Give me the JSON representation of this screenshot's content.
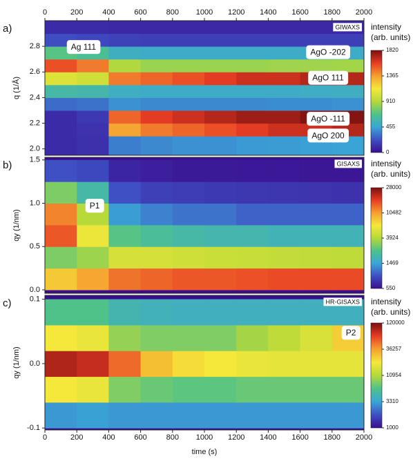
{
  "chart_data": [
    {
      "type": "contour",
      "panel_label": "a)",
      "tag": "GIWAXS",
      "ylabel": "q (1/Å)",
      "xlim": [
        0,
        2000
      ],
      "xticks": [
        0,
        200,
        400,
        600,
        800,
        1000,
        1200,
        1400,
        1600,
        1800,
        2000
      ],
      "xticks_side": "top",
      "ylim": [
        1.95,
        3.0
      ],
      "yticks": [
        {
          "value": 2.0,
          "label": "2.0"
        },
        2.2,
        2.4,
        2.6,
        2.8
      ],
      "x_bins": [
        0,
        200,
        400,
        600,
        800,
        1000,
        1200,
        1400,
        1600,
        1800,
        2000
      ],
      "y_bins": [
        1.95,
        2.1,
        2.2,
        2.3,
        2.4,
        2.5,
        2.6,
        2.7,
        2.8,
        2.9,
        3.0
      ],
      "z": [
        [
          100,
          120,
          350,
          380,
          400,
          400,
          420,
          430,
          440,
          450
        ],
        [
          100,
          130,
          1350,
          1450,
          1500,
          1550,
          1600,
          1650,
          1650,
          1700
        ],
        [
          100,
          150,
          1500,
          1600,
          1650,
          1700,
          1750,
          1750,
          1800,
          1800
        ],
        [
          300,
          320,
          400,
          380,
          380,
          380,
          380,
          390,
          390,
          400
        ],
        [
          600,
          580,
          520,
          500,
          500,
          500,
          500,
          500,
          510,
          520
        ],
        [
          1050,
          1000,
          1450,
          1500,
          1550,
          1600,
          1650,
          1650,
          1700,
          1700
        ],
        [
          1550,
          1450,
          900,
          850,
          850,
          850,
          850,
          860,
          860,
          870
        ],
        [
          700,
          650,
          520,
          500,
          500,
          500,
          500,
          500,
          500,
          500
        ],
        [
          220,
          200,
          180,
          170,
          170,
          170,
          170,
          170,
          170,
          170
        ],
        [
          100,
          100,
          90,
          90,
          90,
          90,
          90,
          90,
          90,
          90
        ]
      ],
      "colorbar": {
        "title": [
          "intensity",
          "(arb. units)"
        ],
        "lim": [
          0,
          1820
        ],
        "ticks": [
          0,
          455,
          910,
          1365,
          1820
        ],
        "log": false
      },
      "annotations": [
        {
          "text": "Ag 111",
          "x": 242,
          "y": 2.79
        },
        {
          "text": "AgO -202",
          "x": 1775,
          "y": 2.75
        },
        {
          "text": "AgO 111",
          "x": 1775,
          "y": 2.55
        },
        {
          "text": "AgO -111",
          "x": 1775,
          "y": 2.23
        },
        {
          "text": "AgO 200",
          "x": 1775,
          "y": 2.1
        }
      ]
    },
    {
      "type": "contour",
      "panel_label": "b)",
      "tag": "GISAXS",
      "ylabel": "qy (1/nm)",
      "xlim": [
        0,
        2000
      ],
      "ylim": [
        -0.04,
        1.53
      ],
      "yticks": [
        {
          "value": 0,
          "label": "0.0"
        },
        0.5,
        {
          "value": 1,
          "label": "1.0"
        },
        1.5
      ],
      "x_bins": [
        0,
        200,
        400,
        600,
        800,
        1000,
        1200,
        1400,
        1600,
        1800,
        2000
      ],
      "y_bins": [
        0,
        0.25,
        0.5,
        0.75,
        1.0,
        1.25,
        1.5
      ],
      "z": [
        [
          8000,
          10000,
          13000,
          14000,
          15000,
          15000,
          15500,
          16000,
          16000,
          16000
        ],
        [
          3000,
          3500,
          5000,
          5000,
          4800,
          4600,
          4500,
          4400,
          4300,
          4200
        ],
        [
          15000,
          6000,
          2500,
          2200,
          2000,
          1900,
          1900,
          1800,
          1800,
          1800
        ],
        [
          12000,
          4000,
          1400,
          1200,
          1100,
          1100,
          1000,
          1000,
          1000,
          1000
        ],
        [
          3000,
          2000,
          900,
          800,
          780,
          760,
          750,
          740,
          730,
          720
        ],
        [
          900,
          850,
          650,
          620,
          600,
          600,
          590,
          590,
          580,
          580
        ]
      ],
      "colorbar": {
        "title": [
          "intensity",
          "(arb. units)"
        ],
        "lim": [
          550,
          28000
        ],
        "ticks": [
          550,
          1469,
          3924,
          10482,
          28000
        ],
        "log": true
      },
      "annotations": [
        {
          "text": "P1",
          "x": 312,
          "y": 0.965
        }
      ]
    },
    {
      "type": "contour",
      "panel_label": "c)",
      "tag": "HR-GISAXS",
      "ylabel": "qy (1/nm)",
      "xlabel": "time (s)",
      "xlim": [
        0,
        2000
      ],
      "xticks": [
        0,
        200,
        400,
        600,
        800,
        1000,
        1200,
        1400,
        1600,
        1800,
        2000
      ],
      "xticks_side": "bottom",
      "ylim": [
        -0.103,
        0.106
      ],
      "yticks": [
        -0.1,
        {
          "value": 0,
          "label": "0.0"
        },
        0.1
      ],
      "x_bins": [
        0,
        200,
        400,
        600,
        800,
        1000,
        1200,
        1400,
        1600,
        1800,
        2000
      ],
      "y_bins": [
        -0.1,
        -0.06,
        -0.02,
        0.02,
        0.06,
        0.1
      ],
      "z": [
        [
          3000,
          3200,
          3000,
          3000,
          3000,
          3000,
          3000,
          3000,
          3000,
          3000
        ],
        [
          20000,
          18000,
          8000,
          7000,
          6500,
          6500,
          7000,
          7000,
          7000,
          7000
        ],
        [
          90000,
          80000,
          50000,
          28000,
          22000,
          20000,
          18000,
          17000,
          17000,
          17000
        ],
        [
          20000,
          18000,
          9000,
          8000,
          8000,
          8000,
          10000,
          12000,
          15000,
          25000
        ],
        [
          6000,
          6000,
          4500,
          4200,
          4000,
          4000,
          4000,
          4000,
          4000,
          4000
        ]
      ],
      "colorbar": {
        "title": [
          "intensity",
          "(arb. units)"
        ],
        "lim": [
          1000,
          120000
        ],
        "ticks": [
          1000,
          3310,
          10954,
          36257,
          120000
        ],
        "log": true
      },
      "annotations": [
        {
          "text": "P2",
          "x": 1918,
          "y": 0.047
        }
      ]
    }
  ],
  "colormap": [
    "#3a0f8f",
    "#3f4fc4",
    "#3aa6d6",
    "#4fc28a",
    "#b5d93a",
    "#f5e83a",
    "#f5a030",
    "#e83c24",
    "#7a1010"
  ]
}
